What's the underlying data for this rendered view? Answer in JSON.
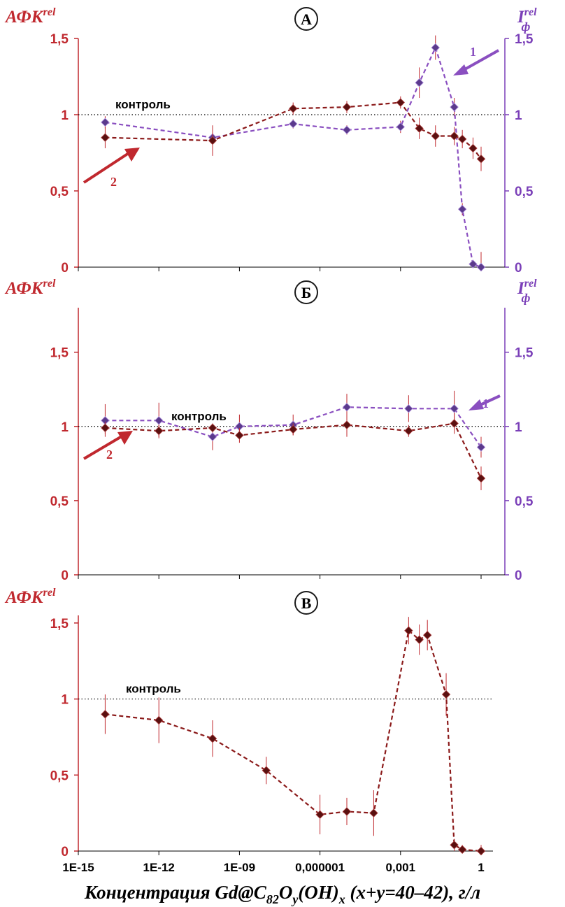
{
  "colors": {
    "afk": "#8B1A1A",
    "afk_axis": "#C0282E",
    "i_series": "#8A4FC0",
    "i_axis": "#7A3FB8",
    "control_line": "#000000",
    "error_bar": "#C0282E"
  },
  "axis_title": {
    "prefix": "Концентрация Gd@C",
    "sub1": "82",
    "mid1": "O",
    "sub2": "y",
    "mid2": "(OH)",
    "sub3": "x",
    "suffix": " (x+y=40–42), г/л"
  },
  "x_ticks": [
    "1E-15",
    "1E-12",
    "1E-09",
    "0,000001",
    "0,001",
    "1"
  ],
  "chart_data": [
    {
      "type": "line",
      "panel_label": "А",
      "xscale": "log",
      "control_label": "контроль",
      "left_axis": {
        "label_main": "АФК",
        "label_sup": "rel",
        "ylim": [
          0,
          1.5
        ],
        "ticks": [
          "0",
          "0,5",
          "1",
          "1,5"
        ]
      },
      "right_axis": {
        "label_main": "I",
        "label_sup": "rel",
        "label_sub": "ф",
        "ylim": [
          0,
          1.5
        ],
        "ticks": [
          "0",
          "0,5",
          "1",
          "1,5"
        ]
      },
      "arrows": [
        {
          "label": "1",
          "series": 1
        },
        {
          "label": "2",
          "series": 2
        }
      ],
      "series": [
        {
          "id": 1,
          "axis": "right",
          "x": [
            1e-14,
            1e-10,
            1e-07,
            1e-05,
            0.001,
            0.005,
            0.02,
            0.1,
            0.2,
            0.5,
            1
          ],
          "values": [
            0.95,
            0.85,
            0.94,
            0.9,
            0.92,
            1.21,
            1.44,
            1.05,
            0.38,
            0.02,
            0.0
          ],
          "errors": [
            0.04,
            0.03,
            0.03,
            0.03,
            0.04,
            0.1,
            0.08,
            0.06,
            0.04,
            0.02,
            0.1
          ]
        },
        {
          "id": 2,
          "axis": "left",
          "x": [
            1e-14,
            1e-10,
            1e-07,
            1e-05,
            0.001,
            0.005,
            0.02,
            0.1,
            0.2,
            0.5,
            1
          ],
          "values": [
            0.85,
            0.83,
            1.04,
            1.05,
            1.08,
            0.91,
            0.86,
            0.86,
            0.84,
            0.78,
            0.71
          ],
          "errors": [
            0.07,
            0.1,
            0.04,
            0.04,
            0.04,
            0.07,
            0.07,
            0.06,
            0.06,
            0.07,
            0.08
          ]
        }
      ]
    },
    {
      "type": "line",
      "panel_label": "Б",
      "xscale": "log",
      "control_label": "контроль",
      "left_axis": {
        "label_main": "АФК",
        "label_sup": "rel",
        "ylim": [
          0,
          1.8
        ],
        "ticks": [
          "0",
          "0,5",
          "1",
          "1,5"
        ]
      },
      "right_axis": {
        "label_main": "I",
        "label_sup": "rel",
        "label_sub": "ф",
        "ylim": [
          0,
          1.8
        ],
        "ticks": [
          "0",
          "0,5",
          "1",
          "1,5"
        ]
      },
      "arrows": [
        {
          "label": "1",
          "series": 1
        },
        {
          "label": "2",
          "series": 2
        }
      ],
      "series": [
        {
          "id": 1,
          "axis": "right",
          "x": [
            1e-14,
            1e-12,
            1e-10,
            1e-09,
            1e-07,
            1e-05,
            0.002,
            0.1,
            1
          ],
          "values": [
            1.04,
            1.04,
            0.93,
            1.0,
            1.01,
            1.13,
            1.12,
            1.12,
            0.86
          ],
          "errors": [
            0.11,
            0.12,
            0.09,
            0.08,
            0.07,
            0.09,
            0.09,
            0.12,
            0.07
          ]
        },
        {
          "id": 2,
          "axis": "left",
          "x": [
            1e-14,
            1e-12,
            1e-10,
            1e-09,
            1e-07,
            1e-05,
            0.002,
            0.1,
            1
          ],
          "values": [
            0.99,
            0.97,
            0.99,
            0.94,
            0.98,
            1.01,
            0.97,
            1.02,
            0.65
          ],
          "errors": [
            0.04,
            0.04,
            0.03,
            0.05,
            0.04,
            0.08,
            0.04,
            0.07,
            0.08
          ]
        }
      ]
    },
    {
      "type": "line",
      "panel_label": "В",
      "xscale": "log",
      "control_label": "контроль",
      "left_axis": {
        "label_main": "АФК",
        "label_sup": "rel",
        "ylim": [
          0,
          1.55
        ],
        "ticks": [
          "0",
          "0,5",
          "1",
          "1,5"
        ]
      },
      "series": [
        {
          "id": 2,
          "axis": "left",
          "x": [
            1e-14,
            1e-12,
            1e-10,
            1e-08,
            1e-06,
            1e-05,
            0.0001,
            0.002,
            0.005,
            0.01,
            0.05,
            0.1,
            0.2,
            1
          ],
          "values": [
            0.9,
            0.86,
            0.74,
            0.53,
            0.24,
            0.26,
            0.25,
            1.45,
            1.39,
            1.42,
            1.03,
            0.04,
            0.01,
            0.0
          ],
          "errors": [
            0.13,
            0.15,
            0.12,
            0.09,
            0.13,
            0.09,
            0.15,
            0.09,
            0.1,
            0.1,
            0.14,
            0.04,
            0.03,
            0.04
          ]
        }
      ]
    }
  ]
}
